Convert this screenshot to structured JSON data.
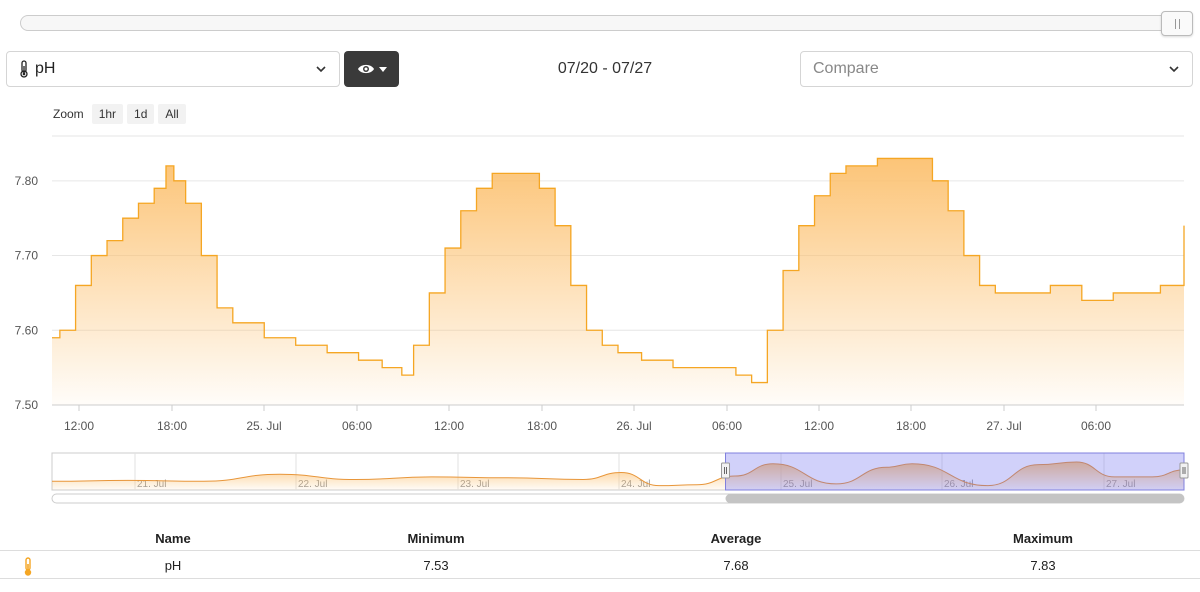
{
  "sensor_select": {
    "value": "pH"
  },
  "compare_select": {
    "placeholder": "Compare"
  },
  "date_range": "07/20 - 07/27",
  "zoom": {
    "label": "Zoom",
    "buttons": [
      "1hr",
      "1d",
      "All"
    ]
  },
  "icons": {
    "sensor": "thermometer-icon",
    "visibility": "eye-icon",
    "dropdown": "chevron-down-icon"
  },
  "colors": {
    "series": "#f5a623",
    "series_fill": "#fcc778",
    "navigator_window": "#c8c8f8"
  },
  "chart_data": {
    "type": "area",
    "series": [
      {
        "name": "pH",
        "x": [
          "2025-07-24T10:30",
          "2025-07-24T11:00",
          "2025-07-24T12:00",
          "2025-07-24T13:00",
          "2025-07-24T14:00",
          "2025-07-24T15:00",
          "2025-07-24T16:00",
          "2025-07-24T17:00",
          "2025-07-24T17:45",
          "2025-07-24T18:15",
          "2025-07-24T19:00",
          "2025-07-24T20:00",
          "2025-07-24T21:00",
          "2025-07-24T22:00",
          "2025-07-25T00:00",
          "2025-07-25T02:00",
          "2025-07-25T04:00",
          "2025-07-25T06:00",
          "2025-07-25T07:30",
          "2025-07-25T08:45",
          "2025-07-25T09:30",
          "2025-07-25T10:30",
          "2025-07-25T11:30",
          "2025-07-25T12:30",
          "2025-07-25T13:30",
          "2025-07-25T14:30",
          "2025-07-25T16:00",
          "2025-07-25T17:30",
          "2025-07-25T18:30",
          "2025-07-25T19:30",
          "2025-07-25T20:30",
          "2025-07-25T21:30",
          "2025-07-25T22:30",
          "2025-07-26T00:00",
          "2025-07-26T02:00",
          "2025-07-26T04:00",
          "2025-07-26T06:00",
          "2025-07-26T07:00",
          "2025-07-26T08:00",
          "2025-07-26T09:00",
          "2025-07-26T10:00",
          "2025-07-26T11:00",
          "2025-07-26T12:00",
          "2025-07-26T13:00",
          "2025-07-26T15:00",
          "2025-07-26T17:00",
          "2025-07-26T18:30",
          "2025-07-26T19:30",
          "2025-07-26T20:30",
          "2025-07-26T21:30",
          "2025-07-26T22:30",
          "2025-07-27T00:00",
          "2025-07-27T02:00",
          "2025-07-27T04:00",
          "2025-07-27T06:00",
          "2025-07-27T08:00",
          "2025-07-27T09:00",
          "2025-07-27T10:30"
        ],
        "y": [
          7.59,
          7.6,
          7.66,
          7.7,
          7.72,
          7.75,
          7.77,
          7.79,
          7.82,
          7.8,
          7.77,
          7.7,
          7.63,
          7.61,
          7.59,
          7.58,
          7.57,
          7.56,
          7.55,
          7.54,
          7.58,
          7.65,
          7.71,
          7.76,
          7.79,
          7.81,
          7.81,
          7.79,
          7.74,
          7.66,
          7.6,
          7.58,
          7.57,
          7.56,
          7.55,
          7.55,
          7.54,
          7.53,
          7.6,
          7.68,
          7.74,
          7.78,
          7.81,
          7.82,
          7.83,
          7.83,
          7.8,
          7.76,
          7.7,
          7.66,
          7.65,
          7.65,
          7.66,
          7.64,
          7.65,
          7.65,
          7.66,
          7.74
        ]
      }
    ],
    "x_ticks": [
      "12:00",
      "18:00",
      "25. Jul",
      "06:00",
      "12:00",
      "18:00",
      "26. Jul",
      "06:00",
      "12:00",
      "18:00",
      "27. Jul",
      "06:00"
    ],
    "y_ticks": [
      "7.50",
      "7.60",
      "7.70",
      "7.80"
    ],
    "ylim": [
      7.5,
      7.86
    ],
    "grid": "horizontal",
    "navigator": {
      "labels": [
        "21. Jul",
        "22. Jul",
        "23. Jul",
        "24. Jul",
        "25. Jul",
        "26. Jul",
        "27. Jul"
      ],
      "x": [
        "2025-07-20T00:00",
        "2025-07-20T12:00",
        "2025-07-21T00:00",
        "2025-07-21T12:00",
        "2025-07-22T00:00",
        "2025-07-22T12:00",
        "2025-07-23T00:00",
        "2025-07-23T12:00",
        "2025-07-23T18:00",
        "2025-07-24T00:00",
        "2025-07-24T06:00",
        "2025-07-24T12:00",
        "2025-07-24T18:00",
        "2025-07-25T04:00",
        "2025-07-25T12:00",
        "2025-07-25T16:00",
        "2025-07-26T04:00",
        "2025-07-26T12:00",
        "2025-07-26T18:00",
        "2025-07-27T00:00",
        "2025-07-27T06:00",
        "2025-07-27T11:00"
      ],
      "y": [
        7.6,
        7.61,
        7.6,
        7.68,
        7.62,
        7.65,
        7.64,
        7.62,
        7.7,
        7.55,
        7.56,
        7.66,
        7.8,
        7.57,
        7.76,
        7.8,
        7.55,
        7.79,
        7.82,
        7.65,
        7.65,
        7.73
      ],
      "selected_range": [
        "2025-07-24T10:30",
        "2025-07-27T11:00"
      ]
    }
  },
  "stats": {
    "headers": {
      "name": "Name",
      "min": "Minimum",
      "avg": "Average",
      "max": "Maximum"
    },
    "row": {
      "name": "pH",
      "min": "7.53",
      "avg": "7.68",
      "max": "7.83"
    }
  }
}
